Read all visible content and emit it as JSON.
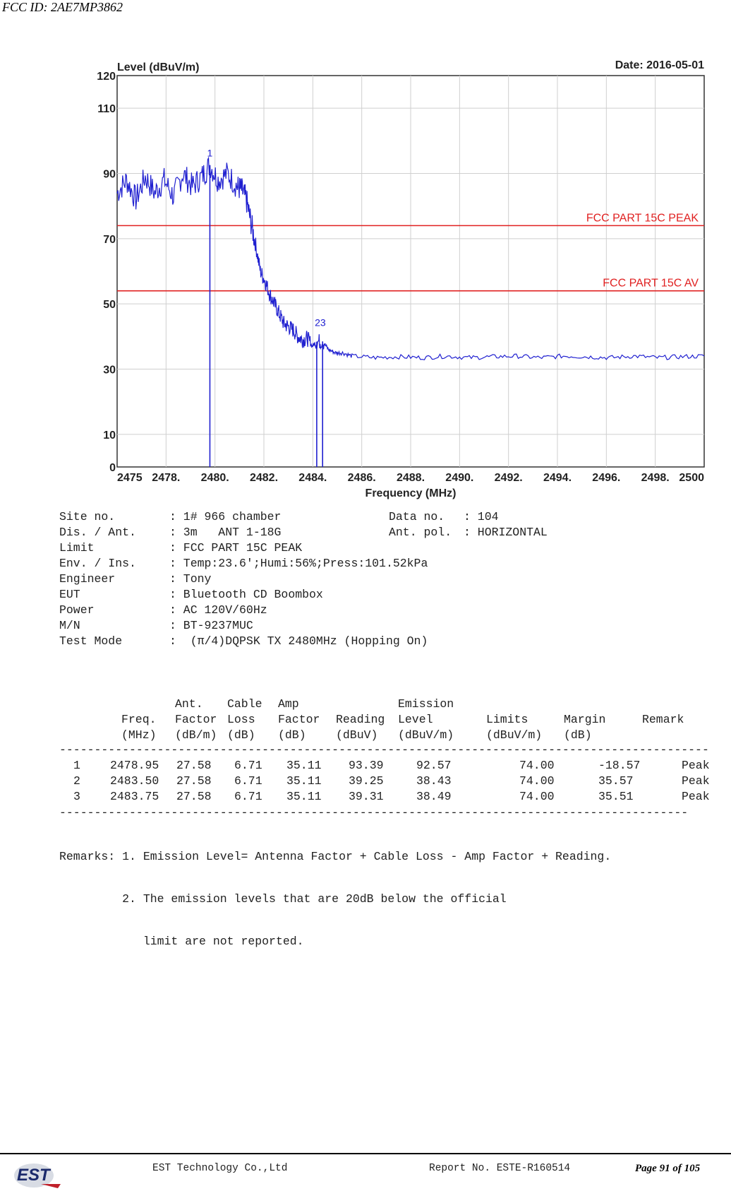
{
  "header": {
    "fcc_id": "FCC ID: 2AE7MP3862"
  },
  "chart_data": {
    "type": "line",
    "ylabel": "Level (dBuV/m)",
    "xlabel": "Frequency (MHz)",
    "date_label": "Date: 2016-05-01",
    "xlim": [
      2475,
      2500
    ],
    "ylim": [
      0,
      120
    ],
    "x_ticks": [
      "2475",
      "2478.",
      "2480.",
      "2482.",
      "2484.",
      "2486.",
      "2488.",
      "2490.",
      "2492.",
      "2494.",
      "2496.",
      "2498.",
      "2500"
    ],
    "y_ticks": [
      "0",
      "10",
      "30",
      "50",
      "70",
      "90",
      "110",
      "120"
    ],
    "grid": true,
    "series": [
      {
        "color": "#2020d0",
        "x": [
          2475.0,
          2475.4,
          2475.8,
          2476.2,
          2476.6,
          2477.0,
          2477.4,
          2477.8,
          2478.2,
          2478.6,
          2478.95,
          2479.3,
          2479.7,
          2480.1,
          2480.3,
          2480.5,
          2480.7,
          2480.9,
          2481.1,
          2481.3,
          2481.5,
          2481.7,
          2481.9,
          2482.1,
          2482.3,
          2482.5,
          2482.7,
          2482.9,
          2483.1,
          2483.3,
          2483.5,
          2483.75,
          2484.0,
          2484.3,
          2484.6,
          2485.0,
          2486.0,
          2487.0,
          2488.0,
          2489.0,
          2490.0,
          2491.0,
          2492.0,
          2493.0,
          2494.0,
          2495.0,
          2496.0,
          2497.0,
          2498.0,
          2499.0,
          2500.0
        ],
        "y": [
          84,
          88,
          82,
          89,
          84,
          88,
          83,
          90,
          86,
          89,
          92.57,
          88,
          90,
          86,
          85,
          82,
          75,
          68,
          60,
          57,
          53,
          50,
          47,
          44,
          43,
          42,
          40,
          39,
          39.5,
          37,
          38.43,
          38.49,
          36,
          35,
          35,
          34,
          33.5,
          33.8,
          33.5,
          34,
          33.5,
          33.8,
          34,
          33.5,
          34,
          33.8,
          33.5,
          34,
          33.5,
          33.8,
          34
        ]
      }
    ],
    "limit_lines": [
      {
        "label": "FCC PART 15C PEAK",
        "value": 74,
        "color": "#e02020"
      },
      {
        "label": "FCC PART 15C  AV",
        "value": 54,
        "color": "#e02020"
      }
    ],
    "markers": [
      {
        "label": "1",
        "x": 2478.95,
        "y": 92.57
      },
      {
        "label": "2",
        "x": 2483.5,
        "y": 38.43
      },
      {
        "label": "3",
        "x": 2483.75,
        "y": 38.49
      }
    ],
    "marker_label_23": "23"
  },
  "info": {
    "left": [
      {
        "k": "Site no.",
        "v": ": 1# 966 chamber"
      },
      {
        "k": "Dis. / Ant.",
        "v": ": 3m   ANT 1-18G"
      },
      {
        "k": "Limit",
        "v": ": FCC PART 15C PEAK"
      },
      {
        "k": "Env. / Ins.",
        "v": ": Temp:23.6';Humi:56%;Press:101.52kPa"
      },
      {
        "k": "Engineer",
        "v": ": Tony"
      },
      {
        "k": "EUT",
        "v": ": Bluetooth CD Boombox"
      },
      {
        "k": "Power",
        "v": ": AC 120V/60Hz"
      },
      {
        "k": "M/N",
        "v": ": BT-9237MUC"
      },
      {
        "k": "Test Mode",
        "v": ":  (π/4)DQPSK TX 2480MHz (Hopping On)"
      }
    ],
    "right": [
      {
        "k": "Data no.",
        "v": ": 104"
      },
      {
        "k": "Ant. pol.",
        "v": ": HORIZONTAL"
      }
    ]
  },
  "table": {
    "headers": [
      [
        "",
        "",
        "Ant.",
        "Cable",
        "Amp",
        "",
        "Emission",
        "",
        "",
        ""
      ],
      [
        "",
        "Freq.",
        "Factor",
        "Loss",
        "Factor",
        "Reading",
        "Level",
        "Limits",
        "Margin",
        "Remark"
      ],
      [
        "",
        "(MHz)",
        "(dB/m)",
        "(dB)",
        "(dB)",
        "(dBuV)",
        "(dBuV/m)",
        "(dBuV/m)",
        "(dB)",
        ""
      ]
    ],
    "rows": [
      [
        "1",
        "2478.95",
        "27.58",
        "6.71",
        "35.11",
        "93.39",
        "92.57",
        "74.00",
        "-18.57",
        "Peak"
      ],
      [
        "2",
        "2483.50",
        "27.58",
        "6.71",
        "35.11",
        "39.25",
        "38.43",
        "74.00",
        "35.57",
        "Peak"
      ],
      [
        "3",
        "2483.75",
        "27.58",
        "6.71",
        "35.11",
        "39.31",
        "38.49",
        "74.00",
        "35.51",
        "Peak"
      ]
    ],
    "dashes_top": "---------------------------------------------------------------------------------------------",
    "dashes_bottom": "------------------------------------------------------------------------------------------"
  },
  "remarks": [
    "Remarks: 1. Emission Level= Antenna Factor + Cable Loss - Amp Factor + Reading.",
    "         2. The emission levels that are 20dB below the official",
    "            limit are not reported."
  ],
  "footer": {
    "company": "EST Technology Co.,Ltd",
    "report_no": "Report No. ESTE-R160514",
    "page": "Page 91 of 105",
    "logo_text": "EST"
  }
}
